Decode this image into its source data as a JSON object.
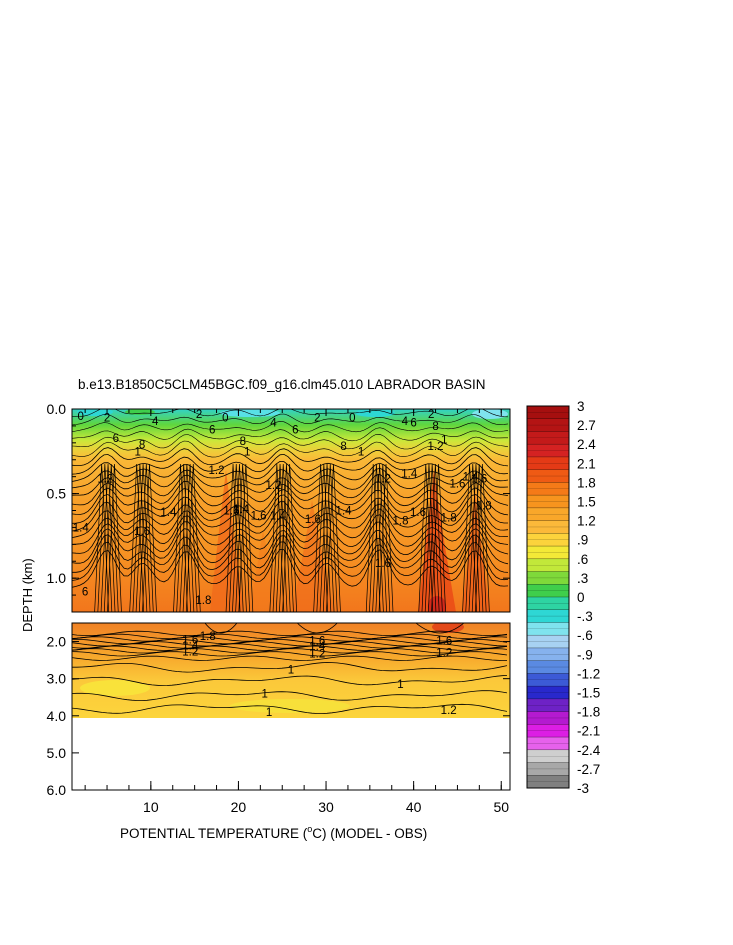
{
  "chart_data": {
    "type": "heatmap",
    "title": "b.e13.B1850C5CLM45BGC.f09_g16.clm45.010 LABRADOR BASIN",
    "ylabel": "DEPTH (km)",
    "xlabel_main": "POTENTIAL TEMPERATURE (",
    "xlabel_deg": "o",
    "xlabel_rest": "C) (MODEL - OBS)",
    "xlim": [
      1,
      51
    ],
    "x_ticks": [
      10,
      20,
      30,
      40,
      50
    ],
    "x_tick_labels": [
      "10",
      "20",
      "30",
      "40",
      "50"
    ],
    "upper_panel": {
      "ylim": [
        0.0,
        1.2
      ],
      "y_ticks": [
        0.0,
        0.5,
        1.0
      ],
      "y_tick_labels": [
        "0.0",
        "0.5",
        "1.0"
      ],
      "contour_labels": [
        {
          "x": 2.0,
          "y": 0.04,
          "text": "0"
        },
        {
          "x": 5.0,
          "y": 0.05,
          "text": "2"
        },
        {
          "x": 10.5,
          "y": 0.07,
          "text": "4"
        },
        {
          "x": 15.5,
          "y": 0.03,
          "text": "2"
        },
        {
          "x": 18.5,
          "y": 0.05,
          "text": "0"
        },
        {
          "x": 17.0,
          "y": 0.12,
          "text": "6"
        },
        {
          "x": 24.0,
          "y": 0.08,
          "text": "4"
        },
        {
          "x": 26.5,
          "y": 0.12,
          "text": "6"
        },
        {
          "x": 29.0,
          "y": 0.05,
          "text": "2"
        },
        {
          "x": 33.0,
          "y": 0.05,
          "text": "0"
        },
        {
          "x": 39.0,
          "y": 0.07,
          "text": "4"
        },
        {
          "x": 40.0,
          "y": 0.08,
          "text": "6"
        },
        {
          "x": 42.0,
          "y": 0.03,
          "text": "2"
        },
        {
          "x": 42.5,
          "y": 0.1,
          "text": "8"
        },
        {
          "x": 6.0,
          "y": 0.17,
          "text": "6"
        },
        {
          "x": 9.0,
          "y": 0.21,
          "text": "8"
        },
        {
          "x": 8.5,
          "y": 0.25,
          "text": "1"
        },
        {
          "x": 20.5,
          "y": 0.19,
          "text": "8"
        },
        {
          "x": 21.0,
          "y": 0.25,
          "text": "1"
        },
        {
          "x": 32.0,
          "y": 0.22,
          "text": "8"
        },
        {
          "x": 34.0,
          "y": 0.25,
          "text": "1"
        },
        {
          "x": 43.5,
          "y": 0.18,
          "text": "1"
        },
        {
          "x": 42.5,
          "y": 0.22,
          "text": "1.2"
        },
        {
          "x": 4.8,
          "y": 0.41,
          "text": "1.2"
        },
        {
          "x": 17.5,
          "y": 0.36,
          "text": "1.2"
        },
        {
          "x": 24.0,
          "y": 0.45,
          "text": "1.2"
        },
        {
          "x": 36.5,
          "y": 0.41,
          "text": "1.2"
        },
        {
          "x": 39.5,
          "y": 0.38,
          "text": "1.4"
        },
        {
          "x": 45.0,
          "y": 0.44,
          "text": "1.6"
        },
        {
          "x": 46.5,
          "y": 0.4,
          "text": "1.4"
        },
        {
          "x": 47.5,
          "y": 0.41,
          "text": "1.6"
        },
        {
          "x": 12.0,
          "y": 0.61,
          "text": "1.4"
        },
        {
          "x": 19.2,
          "y": 0.6,
          "text": "1.6"
        },
        {
          "x": 20.3,
          "y": 0.59,
          "text": "1.4"
        },
        {
          "x": 22.3,
          "y": 0.63,
          "text": "1.6"
        },
        {
          "x": 24.5,
          "y": 0.63,
          "text": "1.4"
        },
        {
          "x": 28.5,
          "y": 0.65,
          "text": "1.6"
        },
        {
          "x": 32.0,
          "y": 0.6,
          "text": "1.4"
        },
        {
          "x": 40.5,
          "y": 0.61,
          "text": "1.6"
        },
        {
          "x": 44.0,
          "y": 0.64,
          "text": "1.8"
        },
        {
          "x": 48.0,
          "y": 0.57,
          "text": "1.8"
        },
        {
          "x": 2.0,
          "y": 0.7,
          "text": "1.4"
        },
        {
          "x": 9.0,
          "y": 0.72,
          "text": "1.6"
        },
        {
          "x": 38.5,
          "y": 0.66,
          "text": "1.8"
        },
        {
          "x": 36.5,
          "y": 0.91,
          "text": "1.6"
        },
        {
          "x": 2.5,
          "y": 1.08,
          "text": "6"
        },
        {
          "x": 16.0,
          "y": 1.13,
          "text": "1.8"
        }
      ]
    },
    "lower_panel": {
      "ylim": [
        1.5,
        6.0
      ],
      "y_ticks": [
        2.0,
        3.0,
        4.0,
        5.0,
        6.0
      ],
      "y_tick_labels": [
        "2.0",
        "3.0",
        "4.0",
        "5.0",
        "6.0"
      ],
      "data_bottom_depth": 3.9,
      "contour_labels": [
        {
          "x": 16.5,
          "y": 1.85,
          "text": "1.8"
        },
        {
          "x": 14.5,
          "y": 1.95,
          "text": "1.6"
        },
        {
          "x": 14.5,
          "y": 2.1,
          "text": "1.4"
        },
        {
          "x": 14.5,
          "y": 2.27,
          "text": "1.2"
        },
        {
          "x": 29.0,
          "y": 1.97,
          "text": "1.6"
        },
        {
          "x": 29.0,
          "y": 2.12,
          "text": "1.4"
        },
        {
          "x": 29.0,
          "y": 2.32,
          "text": "1.2"
        },
        {
          "x": 43.5,
          "y": 1.97,
          "text": "1.6"
        },
        {
          "x": 43.5,
          "y": 2.3,
          "text": "1.2"
        },
        {
          "x": 26.0,
          "y": 2.75,
          "text": "1"
        },
        {
          "x": 23.0,
          "y": 3.4,
          "text": "1"
        },
        {
          "x": 38.5,
          "y": 3.15,
          "text": "1"
        },
        {
          "x": 23.5,
          "y": 3.9,
          "text": "1"
        },
        {
          "x": 44.0,
          "y": 3.85,
          "text": "1.2"
        }
      ]
    },
    "colorbar": {
      "labels": [
        "3",
        "2.7",
        "2.4",
        "2.1",
        "1.8",
        "1.5",
        "1.2",
        ".9",
        ".6",
        ".3",
        "0",
        "-.3",
        "-.6",
        "-.9",
        "-1.2",
        "-1.5",
        "-1.8",
        "-2.1",
        "-2.4",
        "-2.7",
        "-3"
      ],
      "colors": [
        "#a50f0f",
        "#b41414",
        "#c31a1a",
        "#d42222",
        "#e43a16",
        "#ef5a14",
        "#f57a18",
        "#f7941e",
        "#f9a72a",
        "#fbb93a",
        "#fcd33c",
        "#f4e937",
        "#c2e83a",
        "#7fd93a",
        "#3fce4b",
        "#2ed4a2",
        "#2ed7d4",
        "#7fe3ee",
        "#a8d2f2",
        "#86b2ee",
        "#5a8ae2",
        "#3c5ad6",
        "#2828cc",
        "#6e22c6",
        "#b41ad0",
        "#dc1ee4",
        "#e661ec",
        "#cfcfcf",
        "#a8a8a8",
        "#808080"
      ]
    }
  }
}
